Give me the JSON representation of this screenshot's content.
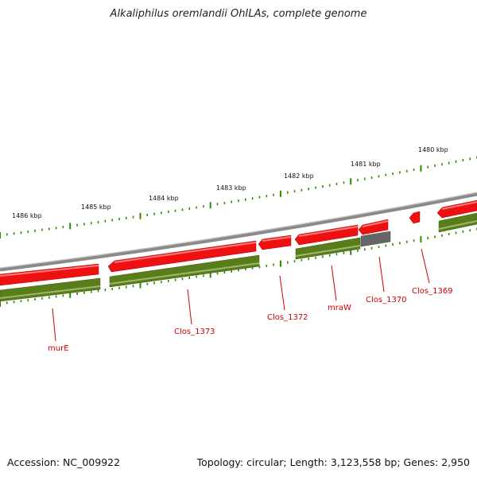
{
  "title": "Alkaliphilus oremlandii OhILAs, complete genome",
  "footer": {
    "accession": "Accession: NC_009922",
    "topology": "Topology: circular; Length: 3,123,558 bp; Genes: 2,950"
  },
  "colors": {
    "forward_cds": "#ee1111",
    "reverse_cds": "#5a7d1c",
    "grey_feature": "#666666",
    "backbone": "#8a8a8a",
    "tick": "#2e8b00",
    "gene_label": "#cc0000"
  },
  "kbp_ticks": [
    "1486 kbp",
    "1485 kbp",
    "1484 kbp",
    "1483 kbp",
    "1482 kbp",
    "1481 kbp",
    "1480 kbp"
  ],
  "gene_labels": [
    "murE",
    "Clos_1373",
    "Clos_1372",
    "mraW",
    "Clos_1370",
    "Clos_1369"
  ]
}
